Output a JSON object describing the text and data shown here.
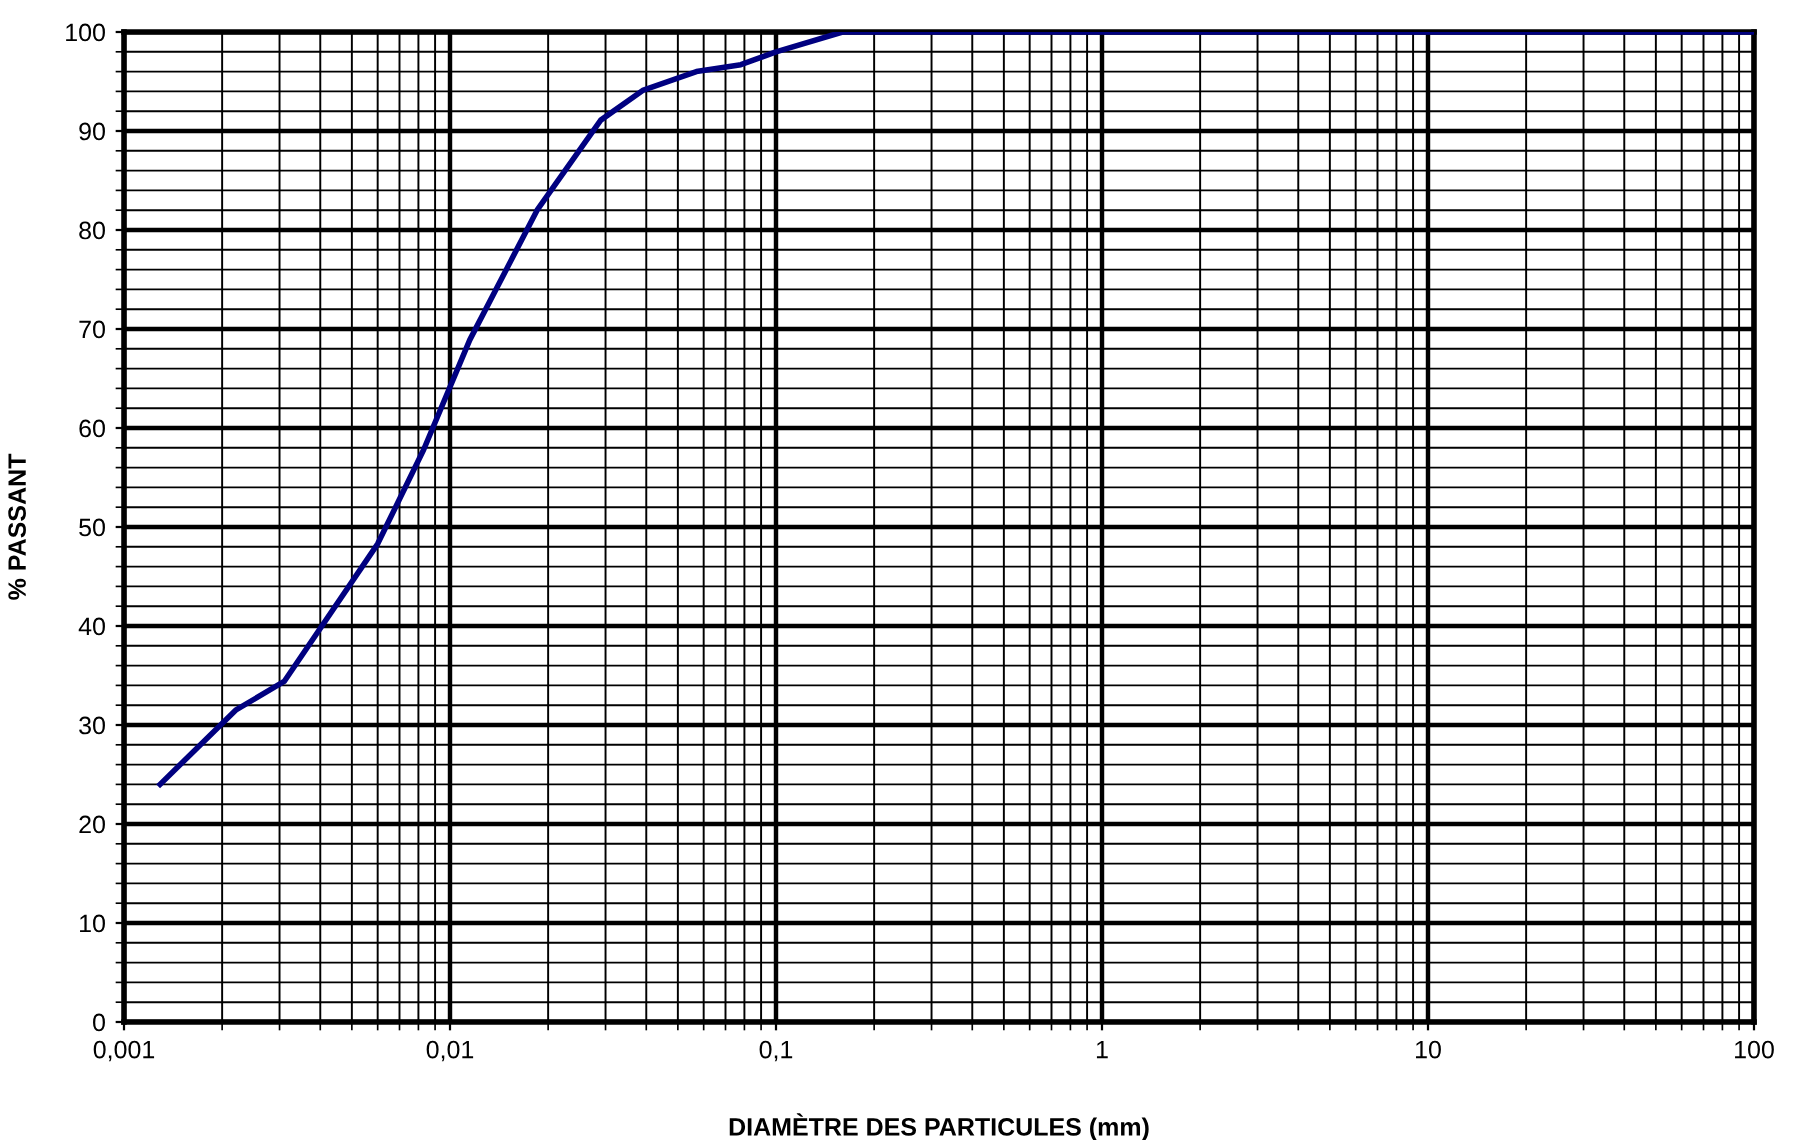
{
  "chart_data": {
    "type": "line",
    "xlabel": "DIAMÈTRE DES PARTICULES (mm)",
    "ylabel": "% PASSANT",
    "log": "x",
    "grid": true,
    "marker": "none",
    "line_style": "solid",
    "series": [
      {
        "color": "#000080",
        "x": [
          0.00129,
          0.0022,
          0.0031,
          0.006,
          0.0083,
          0.0115,
          0.0185,
          0.029,
          0.039,
          0.057,
          0.078,
          0.1,
          0.16,
          100
        ],
        "values": [
          24,
          31.5,
          34.4,
          48.3,
          57.8,
          68.9,
          82,
          91.1,
          94.1,
          96,
          96.7,
          98,
          100,
          100
        ]
      }
    ],
    "xlim": [
      0.001,
      100
    ],
    "xticks": [
      {
        "value": 0.001,
        "label": "0,001"
      },
      {
        "value": 0.01,
        "label": "0,01"
      },
      {
        "value": 0.1,
        "label": "0,1"
      },
      1,
      10,
      100
    ],
    "ylim": [
      0,
      100
    ],
    "yticks": [
      0,
      10,
      20,
      30,
      40,
      50,
      60,
      70,
      80,
      90,
      100
    ]
  }
}
